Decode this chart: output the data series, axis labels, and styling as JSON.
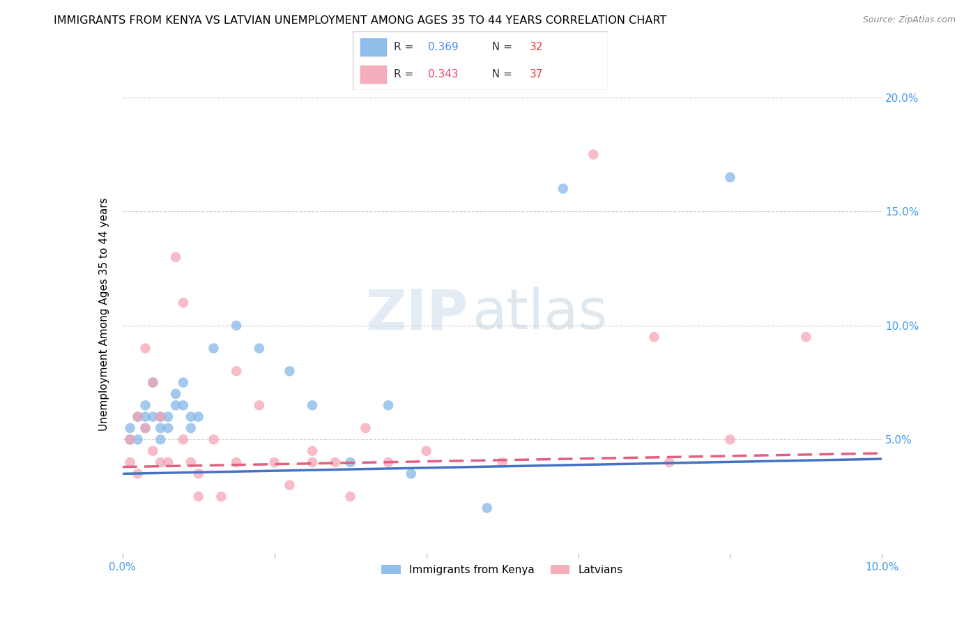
{
  "title": "IMMIGRANTS FROM KENYA VS LATVIAN UNEMPLOYMENT AMONG AGES 35 TO 44 YEARS CORRELATION CHART",
  "source": "Source: ZipAtlas.com",
  "ylabel_label": "Unemployment Among Ages 35 to 44 years",
  "xlim": [
    0.0,
    0.1
  ],
  "ylim": [
    0.0,
    0.21
  ],
  "x_ticks": [
    0.0,
    0.02,
    0.04,
    0.06,
    0.08,
    0.1
  ],
  "x_tick_labels": [
    "0.0%",
    "",
    "",
    "",
    "",
    "10.0%"
  ],
  "y_ticks": [
    0.0,
    0.05,
    0.1,
    0.15,
    0.2
  ],
  "y_tick_labels": [
    "",
    "5.0%",
    "10.0%",
    "15.0%",
    "20.0%"
  ],
  "r1": "0.369",
  "n1": "32",
  "r2": "0.343",
  "n2": "37",
  "color_blue": "#7EB3E8",
  "color_pink": "#F4A0B0",
  "color_blue_line": "#4472C4",
  "color_pink_line": "#E06080",
  "watermark_zip": "ZIP",
  "watermark_atlas": "atlas",
  "grid_color": "#CCCCCC",
  "background_color": "#FFFFFF",
  "title_fontsize": 11.5,
  "axis_label_fontsize": 11,
  "tick_fontsize": 11,
  "blue_scatter_x": [
    0.001,
    0.001,
    0.002,
    0.002,
    0.003,
    0.003,
    0.003,
    0.004,
    0.004,
    0.005,
    0.005,
    0.005,
    0.006,
    0.006,
    0.007,
    0.007,
    0.008,
    0.008,
    0.009,
    0.009,
    0.01,
    0.012,
    0.015,
    0.018,
    0.022,
    0.025,
    0.03,
    0.035,
    0.038,
    0.048,
    0.058,
    0.08
  ],
  "blue_scatter_y": [
    0.055,
    0.05,
    0.06,
    0.05,
    0.06,
    0.055,
    0.065,
    0.06,
    0.075,
    0.06,
    0.055,
    0.05,
    0.06,
    0.055,
    0.07,
    0.065,
    0.065,
    0.075,
    0.06,
    0.055,
    0.06,
    0.09,
    0.1,
    0.09,
    0.08,
    0.065,
    0.04,
    0.065,
    0.035,
    0.02,
    0.16,
    0.165
  ],
  "pink_scatter_x": [
    0.001,
    0.001,
    0.002,
    0.002,
    0.003,
    0.003,
    0.004,
    0.004,
    0.005,
    0.005,
    0.006,
    0.007,
    0.008,
    0.008,
    0.009,
    0.01,
    0.01,
    0.012,
    0.013,
    0.015,
    0.015,
    0.018,
    0.02,
    0.022,
    0.025,
    0.025,
    0.028,
    0.03,
    0.032,
    0.035,
    0.04,
    0.05,
    0.062,
    0.07,
    0.072,
    0.08,
    0.09
  ],
  "pink_scatter_y": [
    0.05,
    0.04,
    0.06,
    0.035,
    0.055,
    0.09,
    0.045,
    0.075,
    0.04,
    0.06,
    0.04,
    0.13,
    0.05,
    0.11,
    0.04,
    0.035,
    0.025,
    0.05,
    0.025,
    0.04,
    0.08,
    0.065,
    0.04,
    0.03,
    0.045,
    0.04,
    0.04,
    0.025,
    0.055,
    0.04,
    0.045,
    0.04,
    0.175,
    0.095,
    0.04,
    0.05,
    0.095
  ]
}
